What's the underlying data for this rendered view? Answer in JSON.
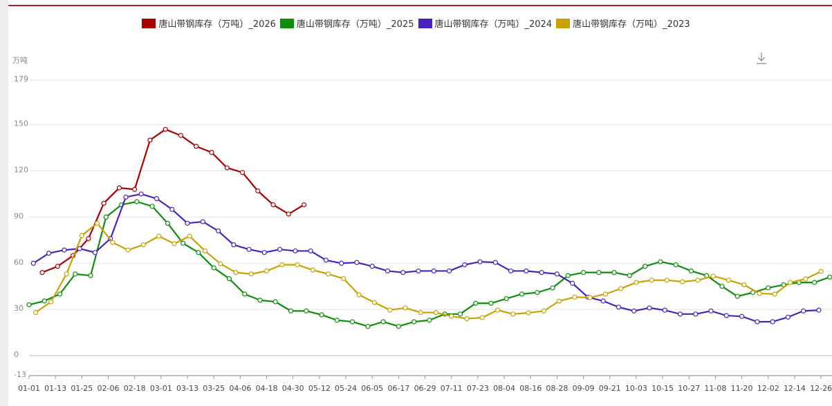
{
  "chart_data": {
    "type": "line",
    "y_unit": "万吨",
    "xlim": [
      0,
      365
    ],
    "ylim": [
      -13,
      179
    ],
    "yticks": [
      -13,
      0,
      30,
      60,
      90,
      120,
      150,
      179
    ],
    "xticks": [
      {
        "value": 0,
        "label": "01-01"
      },
      {
        "value": 12,
        "label": "01-13"
      },
      {
        "value": 24,
        "label": "01-25"
      },
      {
        "value": 36,
        "label": "02-06"
      },
      {
        "value": 48,
        "label": "02-18"
      },
      {
        "value": 60,
        "label": "03-01"
      },
      {
        "value": 72,
        "label": "03-13"
      },
      {
        "value": 84,
        "label": "03-25"
      },
      {
        "value": 96,
        "label": "04-06"
      },
      {
        "value": 108,
        "label": "04-18"
      },
      {
        "value": 120,
        "label": "04-30"
      },
      {
        "value": 132,
        "label": "05-12"
      },
      {
        "value": 144,
        "label": "05-24"
      },
      {
        "value": 156,
        "label": "06-05"
      },
      {
        "value": 168,
        "label": "06-17"
      },
      {
        "value": 180,
        "label": "06-29"
      },
      {
        "value": 192,
        "label": "07-11"
      },
      {
        "value": 204,
        "label": "07-23"
      },
      {
        "value": 216,
        "label": "08-04"
      },
      {
        "value": 228,
        "label": "08-16"
      },
      {
        "value": 240,
        "label": "08-28"
      },
      {
        "value": 252,
        "label": "09-09"
      },
      {
        "value": 264,
        "label": "09-21"
      },
      {
        "value": 276,
        "label": "10-03"
      },
      {
        "value": 288,
        "label": "10-15"
      },
      {
        "value": 300,
        "label": "10-27"
      },
      {
        "value": 312,
        "label": "11-08"
      },
      {
        "value": 324,
        "label": "11-20"
      },
      {
        "value": 336,
        "label": "12-02"
      },
      {
        "value": 348,
        "label": "12-14"
      },
      {
        "value": 360,
        "label": "12-26"
      }
    ],
    "grid": true,
    "series": [
      {
        "name": "唐山带钢库存（万吨）_2026",
        "color": "#a80000",
        "x": [
          6,
          13,
          20,
          27,
          34,
          41,
          48,
          55,
          62,
          69,
          76,
          83,
          90,
          97,
          104,
          111,
          118,
          125
        ],
        "values": [
          54,
          58,
          65,
          76,
          99,
          109,
          108,
          140,
          147,
          143,
          136,
          132,
          122,
          119,
          107,
          98,
          92,
          98
        ]
      },
      {
        "name": "唐山带钢库存（万吨）_2025",
        "color": "#0a8f0a",
        "x": [
          0,
          7,
          14,
          21,
          28,
          35,
          42,
          49,
          56,
          63,
          70,
          77,
          84,
          91,
          98,
          105,
          112,
          119,
          126,
          133,
          140,
          147,
          154,
          161,
          168,
          175,
          182,
          189,
          196,
          203,
          210,
          217,
          224,
          231,
          238,
          245,
          252,
          259,
          266,
          273,
          280,
          287,
          294,
          301,
          308,
          315,
          322,
          329,
          336,
          343,
          350,
          357,
          364
        ],
        "values": [
          33,
          35.5,
          40,
          53,
          52,
          90,
          98,
          100,
          97,
          86,
          73,
          67,
          57,
          50,
          40,
          36,
          35,
          29,
          29,
          26.5,
          23,
          22,
          19,
          22,
          19,
          22,
          23,
          27,
          27,
          34,
          34,
          37,
          40,
          41,
          44,
          52,
          54,
          54,
          54,
          52,
          58,
          61,
          59,
          55,
          52,
          45,
          38.5,
          41,
          44,
          46,
          47.5,
          47.5,
          51
        ]
      },
      {
        "name": "唐山带钢库存（万吨）_2024",
        "color": "#4a22c0",
        "x": [
          2,
          9,
          16,
          23,
          30,
          37,
          44,
          51,
          58,
          65,
          72,
          79,
          86,
          93,
          100,
          107,
          114,
          121,
          128,
          135,
          142,
          149,
          156,
          163,
          170,
          177,
          184,
          191,
          198,
          205,
          212,
          219,
          226,
          233,
          240,
          247,
          254,
          261,
          268,
          275,
          282,
          289,
          296,
          303,
          310,
          317,
          324,
          331,
          338,
          345,
          352,
          359
        ],
        "values": [
          60,
          66.5,
          68.6,
          69.5,
          67,
          76,
          103,
          105,
          102,
          95,
          86,
          87,
          81,
          72,
          69,
          67,
          69,
          68,
          68,
          62,
          60,
          60.5,
          58,
          55,
          54,
          55,
          55,
          55,
          59,
          61,
          60.5,
          55,
          55,
          54,
          53,
          47,
          38,
          35.5,
          31.5,
          29,
          31,
          29.5,
          27,
          27,
          29,
          26,
          25.5,
          22,
          22,
          25,
          29,
          29.5
        ]
      },
      {
        "name": "唐山带钢库存（万吨）_2023",
        "color": "#c9a200",
        "x": [
          3,
          10,
          17,
          24,
          31,
          38,
          45,
          52,
          59,
          66,
          73,
          80,
          87,
          94,
          101,
          108,
          115,
          122,
          129,
          136,
          143,
          150,
          157,
          164,
          171,
          178,
          185,
          192,
          199,
          206,
          213,
          220,
          227,
          234,
          241,
          248,
          255,
          262,
          269,
          276,
          283,
          290,
          297,
          304,
          311,
          318,
          325,
          332,
          339,
          346,
          353,
          360
        ],
        "values": [
          28,
          35,
          53,
          78,
          86,
          73.5,
          68.6,
          72,
          77.6,
          72.7,
          77.6,
          68,
          59.7,
          54,
          53,
          55,
          59,
          59,
          55.6,
          53,
          50,
          39.5,
          34.5,
          29.6,
          31,
          28,
          28,
          25.6,
          24,
          24.7,
          29.6,
          27,
          27.8,
          29,
          35.4,
          38,
          37.7,
          40,
          43.5,
          47.5,
          49,
          49,
          48,
          49,
          51.6,
          49,
          46,
          40.4,
          40,
          47.5,
          49.8,
          54.7
        ]
      }
    ]
  }
}
